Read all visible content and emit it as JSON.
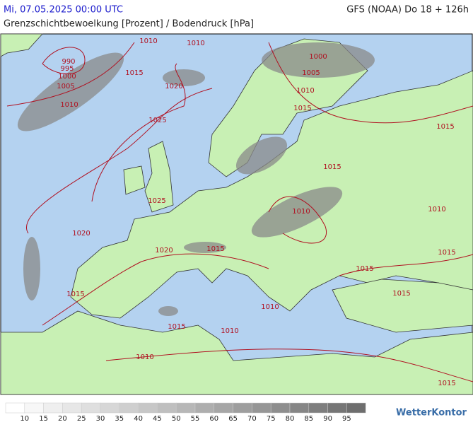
{
  "header": {
    "datetime": "Mi, 07.05.2025 00:00 UTC",
    "model": "GFS (NOAA) Do 18 + 126h",
    "subtitle": "Grenzschichtbewoelkung [Prozent] / Bodendruck [hPa]"
  },
  "isobar_labels": [
    "990",
    "995",
    "1000",
    "1005",
    "1010",
    "1010",
    "1010",
    "1015",
    "1020",
    "1025",
    "1025",
    "1020",
    "1020",
    "1015",
    "1015",
    "1015",
    "1010",
    "1010",
    "1010",
    "1000",
    "1005",
    "1010",
    "1015",
    "1015",
    "1010",
    "1015",
    "1010",
    "1015",
    "1015",
    "1015",
    "1015"
  ],
  "legend": {
    "labels": [
      10,
      15,
      20,
      25,
      30,
      35,
      40,
      45,
      50,
      55,
      60,
      65,
      70,
      75,
      80,
      85,
      90,
      95
    ]
  },
  "logo": "WetterKontor"
}
